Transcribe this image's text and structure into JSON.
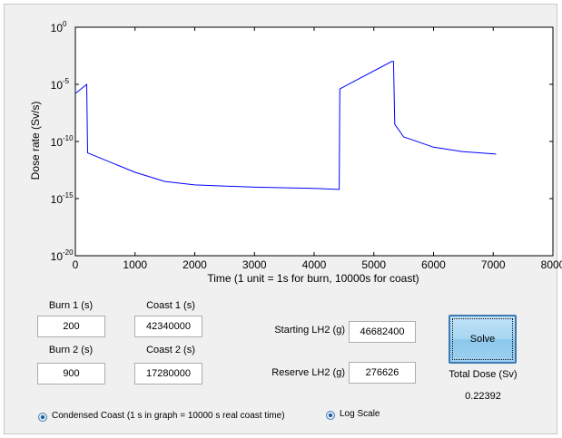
{
  "chart_data": {
    "type": "line",
    "xlabel": "Time (1 unit = 1s for burn, 10000s for coast)",
    "ylabel": "Dose rate (Sv/s)",
    "xlim": [
      0,
      8000
    ],
    "ylim_log10": [
      -20,
      0
    ],
    "yscale": "log",
    "grid": false,
    "x_ticks": [
      "0",
      "1000",
      "2000",
      "3000",
      "4000",
      "5000",
      "6000",
      "7000",
      "8000"
    ],
    "y_tick_exponents": [
      "0",
      "-5",
      "-10",
      "-15",
      "-20"
    ],
    "series_color": "#0000ff",
    "points_log10": [
      [
        0,
        -5.8
      ],
      [
        190,
        -5.0
      ],
      [
        205,
        -11.0
      ],
      [
        1000,
        -12.7
      ],
      [
        1500,
        -13.5
      ],
      [
        2000,
        -13.8
      ],
      [
        3000,
        -14.0
      ],
      [
        4000,
        -14.1
      ],
      [
        4420,
        -14.2
      ],
      [
        4430,
        -5.4
      ],
      [
        5300,
        -3.0
      ],
      [
        5330,
        -3.0
      ],
      [
        5350,
        -8.5
      ],
      [
        5500,
        -9.6
      ],
      [
        6000,
        -10.5
      ],
      [
        6500,
        -10.9
      ],
      [
        7050,
        -11.1
      ]
    ]
  },
  "inputs": {
    "burn1": {
      "label": "Burn 1 (s)",
      "value": "200"
    },
    "coast1": {
      "label": "Coast 1 (s)",
      "value": "42340000"
    },
    "burn2": {
      "label": "Burn 2 (s)",
      "value": "900"
    },
    "coast2": {
      "label": "Coast 2 (s)",
      "value": "17280000"
    },
    "starting_lh2": {
      "label": "Starting LH2 (g)",
      "value": "46682400"
    },
    "reserve_lh2": {
      "label": "Reserve LH2 (g)",
      "value": "276626"
    }
  },
  "solve_label": "Solve",
  "total_dose": {
    "label": "Total Dose (Sv)",
    "value": "0.22392"
  },
  "options": {
    "condensed_coast": {
      "label": "Condensed Coast (1 s in graph = 10000 s real coast time)",
      "checked": true
    },
    "log_scale": {
      "label": "Log Scale",
      "checked": true
    }
  }
}
